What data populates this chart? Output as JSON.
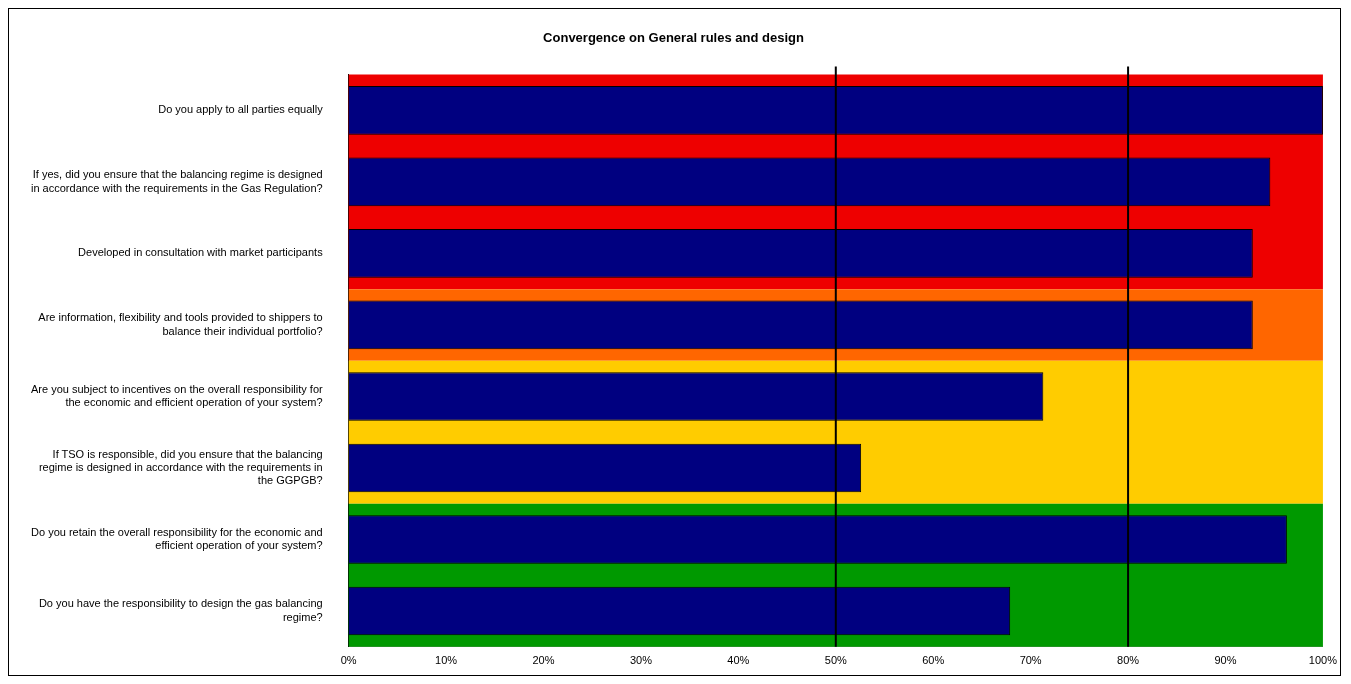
{
  "chart_data": {
    "type": "bar",
    "orientation": "horizontal",
    "title": "Convergence on General rules and design",
    "categories": [
      "Do you apply to all parties equally",
      "If yes, did you ensure that the balancing regime is designed in accordance with the requirements in the Gas Regulation?",
      "Developed in consultation with market participants",
      "Are information, flexibility and tools provided to shippers to balance their individual portfolio?",
      "Are you subject to incentives on the overall responsibility for the economic and efficient operation of your system?",
      "If TSO is responsible, did you ensure that the balancing regime is designed in accordance with the requirements in the GGPGB?",
      "Do you retain the overall responsibility for the economic and efficient operation of your system?",
      "Do you have the responsibility to design the gas balancing regime?"
    ],
    "values": [
      100,
      94.6,
      92.8,
      92.8,
      71.3,
      52.6,
      96.3,
      67.9
    ],
    "color": "#000080",
    "xlim": [
      0,
      100
    ],
    "xticks": [
      {
        "value": 0,
        "label": "0%"
      },
      {
        "value": 10,
        "label": "10%"
      },
      {
        "value": 20,
        "label": "20%"
      },
      {
        "value": 30,
        "label": "30%"
      },
      {
        "value": 40,
        "label": "40%"
      },
      {
        "value": 50,
        "label": "50%"
      },
      {
        "value": 60,
        "label": "60%"
      },
      {
        "value": 70,
        "label": "70%"
      },
      {
        "value": 80,
        "label": "80%"
      },
      {
        "value": 90,
        "label": "90%"
      },
      {
        "value": 100,
        "label": "100%"
      }
    ],
    "bands": [
      {
        "axis": "y",
        "from": "Do you apply to all parties equally",
        "to": "Developed in consultation with market participants",
        "color": "#ee0000"
      },
      {
        "axis": "y",
        "from": "Are information, flexibility and tools provided to shippers to balance their individual portfolio?",
        "to": "Are information, flexibility and tools provided to shippers to balance their individual portfolio?",
        "color": "#ff6600"
      },
      {
        "axis": "y",
        "from": "Are you subject to incentives on the overall responsibility for the economic and efficient operation of your system?",
        "to": "If TSO is responsible, did you ensure that the balancing regime is designed in accordance with the requirements in the GGPGB?",
        "color": "#ffcc00"
      },
      {
        "axis": "y",
        "from": "Do you retain the overall responsibility for the economic and efficient operation of your system?",
        "to": "Do you have the responsibility to design the gas balancing regime?",
        "color": "#009900"
      }
    ],
    "ref_lines": [
      {
        "axis": "x",
        "value": 50,
        "color": "#000000"
      },
      {
        "axis": "x",
        "value": 80,
        "color": "#000000"
      }
    ],
    "grid": false,
    "legend": false
  }
}
